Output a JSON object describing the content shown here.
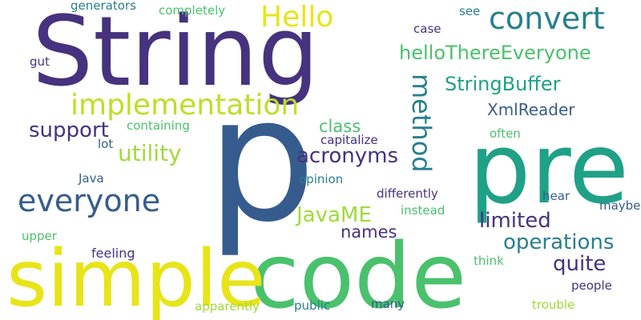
{
  "words": [
    {
      "text": "String",
      "color": "#46327e"
    },
    {
      "text": "p",
      "color": "#365c8d"
    },
    {
      "text": "pre",
      "color": "#1fa187"
    },
    {
      "text": "code",
      "color": "#4ac16d"
    },
    {
      "text": "simple",
      "color": "#e8e419"
    },
    {
      "text": "convert",
      "color": "#277f8e"
    },
    {
      "text": "Hello",
      "color": "#e8e419"
    },
    {
      "text": "helloThereEveryone",
      "color": "#4ac16d"
    },
    {
      "text": "implementation",
      "color": "#bddf26"
    },
    {
      "text": "everyone",
      "color": "#365c8d"
    },
    {
      "text": "method",
      "color": "#277f8e"
    },
    {
      "text": "StringBuffer",
      "color": "#1fa187"
    },
    {
      "text": "acronyms",
      "color": "#46327e"
    },
    {
      "text": "utility",
      "color": "#a0da39"
    },
    {
      "text": "support",
      "color": "#46327e"
    },
    {
      "text": "JavaME",
      "color": "#a0da39"
    },
    {
      "text": "limited",
      "color": "#46327e"
    },
    {
      "text": "operations",
      "color": "#277f8e"
    },
    {
      "text": "quite",
      "color": "#46327e"
    },
    {
      "text": "XmlReader",
      "color": "#365c8d"
    },
    {
      "text": "class",
      "color": "#4ac16d"
    },
    {
      "text": "names",
      "color": "#46327e"
    },
    {
      "text": "generators",
      "color": "#277f8e"
    },
    {
      "text": "completely",
      "color": "#4ac16d"
    },
    {
      "text": "see",
      "color": "#277f8e"
    },
    {
      "text": "case",
      "color": "#46327e"
    },
    {
      "text": "gut",
      "color": "#46327e"
    },
    {
      "text": "containing",
      "color": "#4ac16d"
    },
    {
      "text": "lot",
      "color": "#365c8d"
    },
    {
      "text": "capitalize",
      "color": "#46327e"
    },
    {
      "text": "often",
      "color": "#4ac16d"
    },
    {
      "text": "Java",
      "color": "#365c8d"
    },
    {
      "text": "opinion",
      "color": "#277f8e"
    },
    {
      "text": "differently",
      "color": "#46327e"
    },
    {
      "text": "instead",
      "color": "#4ac16d"
    },
    {
      "text": "hear",
      "color": "#365c8d"
    },
    {
      "text": "maybe",
      "color": "#365c8d"
    },
    {
      "text": "upper",
      "color": "#4ac16d"
    },
    {
      "text": "feeling",
      "color": "#46327e"
    },
    {
      "text": "think",
      "color": "#4ac16d"
    },
    {
      "text": "people",
      "color": "#46327e"
    },
    {
      "text": "apparently",
      "color": "#a0da39"
    },
    {
      "text": "public",
      "color": "#277f8e"
    },
    {
      "text": "many",
      "color": "#365c8d"
    },
    {
      "text": "trouble",
      "color": "#a0da39"
    }
  ]
}
